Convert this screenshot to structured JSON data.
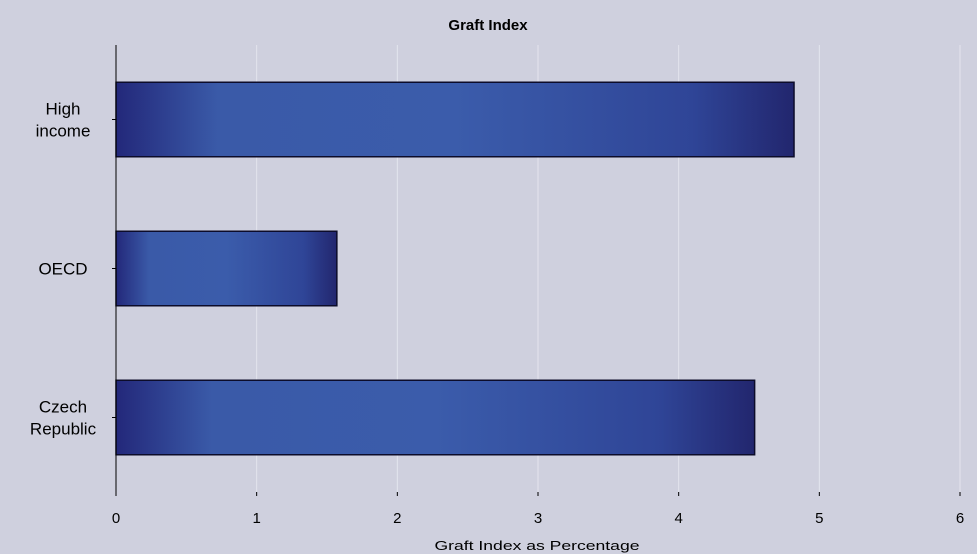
{
  "chart_data": {
    "type": "bar",
    "orientation": "horizontal",
    "title": "Graft Index",
    "xlabel": "Graft Index as Percentage",
    "ylabel": "",
    "categories": [
      [
        "High",
        "income"
      ],
      [
        "OECD"
      ],
      [
        "Czech",
        "Republic"
      ]
    ],
    "values": [
      4.82,
      1.57,
      4.54
    ],
    "xlim": [
      0,
      6
    ],
    "xticks": [
      "0",
      "1",
      "2",
      "3",
      "4",
      "5",
      "6"
    ],
    "grid": true,
    "legend": "none"
  },
  "colors": {
    "background": "#cfd0de",
    "bar_dark": "#23287a",
    "bar_light": "#3b5cab",
    "gridline": "#e4e5ee"
  }
}
